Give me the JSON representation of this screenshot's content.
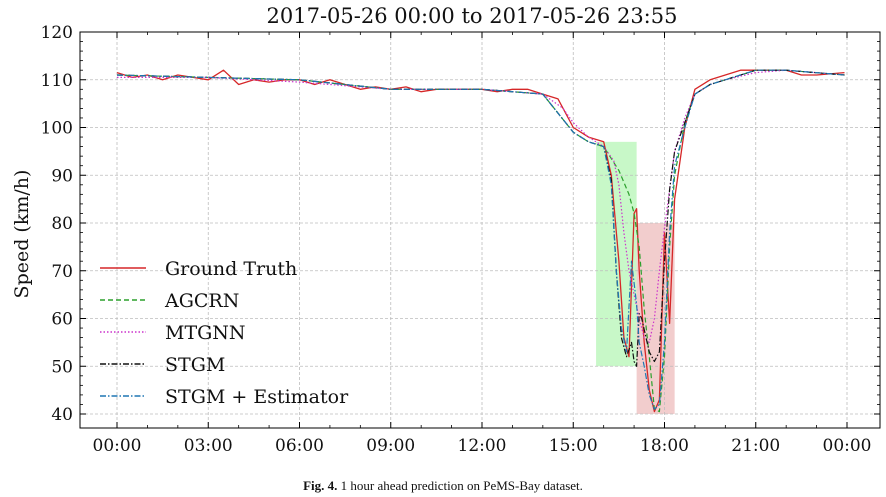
{
  "chart_data": {
    "type": "line",
    "title": "2017-05-26 00:00 to 2017-05-26 23:55",
    "xlabel": "",
    "ylabel": "Speed (km/h)",
    "xlim": [
      "00:00",
      "00:00"
    ],
    "ylim": [
      40,
      120
    ],
    "x_ticks": [
      "00:00",
      "03:00",
      "06:00",
      "09:00",
      "12:00",
      "15:00",
      "18:00",
      "21:00",
      "00:00"
    ],
    "y_ticks": [
      40,
      50,
      60,
      70,
      80,
      90,
      100,
      110,
      120
    ],
    "grid": true,
    "legend_position": "lower-left",
    "series": [
      {
        "name": "Ground Truth",
        "color": "#d62728",
        "linestyle": "solid",
        "points": [
          [
            "00:00",
            111.5
          ],
          [
            "00:30",
            110.5
          ],
          [
            "01:00",
            111
          ],
          [
            "01:30",
            110
          ],
          [
            "02:00",
            111
          ],
          [
            "02:30",
            110.5
          ],
          [
            "03:00",
            110
          ],
          [
            "03:30",
            112
          ],
          [
            "04:00",
            109
          ],
          [
            "04:30",
            110
          ],
          [
            "05:00",
            109.5
          ],
          [
            "05:30",
            110
          ],
          [
            "06:00",
            110
          ],
          [
            "06:30",
            109
          ],
          [
            "07:00",
            110
          ],
          [
            "07:30",
            109
          ],
          [
            "08:00",
            108
          ],
          [
            "08:30",
            108.5
          ],
          [
            "09:00",
            108
          ],
          [
            "09:30",
            108.5
          ],
          [
            "10:00",
            107.5
          ],
          [
            "10:30",
            108
          ],
          [
            "11:00",
            108
          ],
          [
            "11:30",
            108
          ],
          [
            "12:00",
            108
          ],
          [
            "12:30",
            107.5
          ],
          [
            "13:00",
            108
          ],
          [
            "13:30",
            108
          ],
          [
            "14:00",
            107
          ],
          [
            "14:30",
            106
          ],
          [
            "15:00",
            100
          ],
          [
            "15:30",
            98
          ],
          [
            "16:00",
            97
          ],
          [
            "16:15",
            90
          ],
          [
            "16:30",
            72
          ],
          [
            "16:40",
            56
          ],
          [
            "16:50",
            52
          ],
          [
            "17:00",
            82
          ],
          [
            "17:05",
            83
          ],
          [
            "17:10",
            70
          ],
          [
            "17:20",
            55
          ],
          [
            "17:30",
            45
          ],
          [
            "17:40",
            40.5
          ],
          [
            "17:50",
            43
          ],
          [
            "18:00",
            78
          ],
          [
            "18:10",
            59
          ],
          [
            "18:20",
            85
          ],
          [
            "18:40",
            100
          ],
          [
            "19:00",
            108
          ],
          [
            "19:30",
            110
          ],
          [
            "20:00",
            111
          ],
          [
            "20:30",
            112
          ],
          [
            "21:00",
            112
          ],
          [
            "21:30",
            112
          ],
          [
            "22:00",
            112
          ],
          [
            "22:30",
            111
          ],
          [
            "23:00",
            111
          ],
          [
            "23:55",
            111.5
          ]
        ]
      },
      {
        "name": "AGCRN",
        "color": "#2ca02c",
        "linestyle": "dashed",
        "points": [
          [
            "00:00",
            111
          ],
          [
            "03:00",
            110.5
          ],
          [
            "06:00",
            110
          ],
          [
            "09:00",
            108
          ],
          [
            "12:00",
            108
          ],
          [
            "14:00",
            107
          ],
          [
            "15:00",
            99
          ],
          [
            "15:30",
            97
          ],
          [
            "16:00",
            96
          ],
          [
            "16:30",
            91
          ],
          [
            "16:50",
            86
          ],
          [
            "17:00",
            82
          ],
          [
            "17:10",
            75
          ],
          [
            "17:20",
            62
          ],
          [
            "17:30",
            52
          ],
          [
            "17:40",
            41
          ],
          [
            "17:50",
            40.5
          ],
          [
            "18:00",
            52
          ],
          [
            "18:10",
            75
          ],
          [
            "18:20",
            90
          ],
          [
            "18:40",
            101
          ],
          [
            "19:00",
            107
          ],
          [
            "19:30",
            109
          ],
          [
            "20:00",
            110
          ],
          [
            "21:00",
            112
          ],
          [
            "22:00",
            112
          ],
          [
            "23:55",
            111
          ]
        ]
      },
      {
        "name": "MTGNN",
        "color": "#cc33cc",
        "linestyle": "dotted",
        "points": [
          [
            "00:00",
            110.5
          ],
          [
            "03:00",
            110.5
          ],
          [
            "06:00",
            109.5
          ],
          [
            "09:00",
            108
          ],
          [
            "12:00",
            108
          ],
          [
            "14:00",
            107
          ],
          [
            "14:40",
            104
          ],
          [
            "15:00",
            101
          ],
          [
            "15:30",
            98
          ],
          [
            "16:00",
            96
          ],
          [
            "16:20",
            93
          ],
          [
            "16:30",
            88
          ],
          [
            "16:40",
            78
          ],
          [
            "16:50",
            70
          ],
          [
            "17:00",
            65
          ],
          [
            "17:10",
            60
          ],
          [
            "17:20",
            56
          ],
          [
            "17:30",
            55
          ],
          [
            "17:40",
            60
          ],
          [
            "17:50",
            70
          ],
          [
            "18:00",
            79
          ],
          [
            "18:10",
            87
          ],
          [
            "18:20",
            95
          ],
          [
            "18:40",
            102
          ],
          [
            "19:00",
            107
          ],
          [
            "19:30",
            109
          ],
          [
            "20:00",
            110
          ],
          [
            "21:00",
            111.5
          ],
          [
            "22:00",
            112
          ],
          [
            "23:55",
            111
          ]
        ]
      },
      {
        "name": "STGM",
        "color": "#111111",
        "linestyle": "dashdot",
        "points": [
          [
            "00:00",
            111
          ],
          [
            "03:00",
            110.5
          ],
          [
            "06:00",
            110
          ],
          [
            "09:00",
            108
          ],
          [
            "12:00",
            108
          ],
          [
            "14:00",
            107
          ],
          [
            "15:00",
            99
          ],
          [
            "15:30",
            97
          ],
          [
            "16:00",
            96
          ],
          [
            "16:15",
            89
          ],
          [
            "16:25",
            70
          ],
          [
            "16:35",
            56
          ],
          [
            "16:45",
            52
          ],
          [
            "16:55",
            55
          ],
          [
            "17:00",
            51
          ],
          [
            "17:05",
            50
          ],
          [
            "17:10",
            61
          ],
          [
            "17:15",
            60
          ],
          [
            "17:30",
            53
          ],
          [
            "17:40",
            51
          ],
          [
            "17:50",
            53
          ],
          [
            "18:00",
            72
          ],
          [
            "18:10",
            87
          ],
          [
            "18:20",
            95
          ],
          [
            "18:40",
            101
          ],
          [
            "19:00",
            107
          ],
          [
            "19:30",
            109
          ],
          [
            "20:00",
            110
          ],
          [
            "21:00",
            112
          ],
          [
            "22:00",
            112
          ],
          [
            "23:55",
            111
          ]
        ]
      },
      {
        "name": "STGM + Estimator",
        "color": "#1f77b4",
        "linestyle": "dashdot",
        "points": [
          [
            "00:00",
            111
          ],
          [
            "03:00",
            110.5
          ],
          [
            "06:00",
            110
          ],
          [
            "09:00",
            108
          ],
          [
            "12:00",
            108
          ],
          [
            "14:00",
            107
          ],
          [
            "15:00",
            99
          ],
          [
            "15:30",
            97
          ],
          [
            "16:00",
            96
          ],
          [
            "16:15",
            88
          ],
          [
            "16:25",
            70
          ],
          [
            "16:35",
            58
          ],
          [
            "16:45",
            53
          ],
          [
            "16:55",
            72
          ],
          [
            "17:05",
            63
          ],
          [
            "17:10",
            55
          ],
          [
            "17:20",
            50
          ],
          [
            "17:30",
            44
          ],
          [
            "17:40",
            41
          ],
          [
            "17:50",
            42
          ],
          [
            "18:00",
            55
          ],
          [
            "18:10",
            78
          ],
          [
            "18:20",
            92
          ],
          [
            "18:40",
            100
          ],
          [
            "19:00",
            107
          ],
          [
            "19:30",
            109
          ],
          [
            "20:00",
            110
          ],
          [
            "21:00",
            112
          ],
          [
            "22:00",
            112
          ],
          [
            "23:55",
            111
          ]
        ]
      }
    ],
    "highlight_regions": [
      {
        "x_range": [
          "15:45",
          "17:05"
        ],
        "y_range": [
          50,
          97
        ],
        "color": "#b5f5b5"
      },
      {
        "x_range": [
          "17:05",
          "18:20"
        ],
        "y_range": [
          40,
          80
        ],
        "color": "#eebcbc"
      }
    ]
  },
  "caption": {
    "label": "Fig. 4.",
    "text": " 1 hour ahead prediction on PeMS-Bay dataset."
  }
}
